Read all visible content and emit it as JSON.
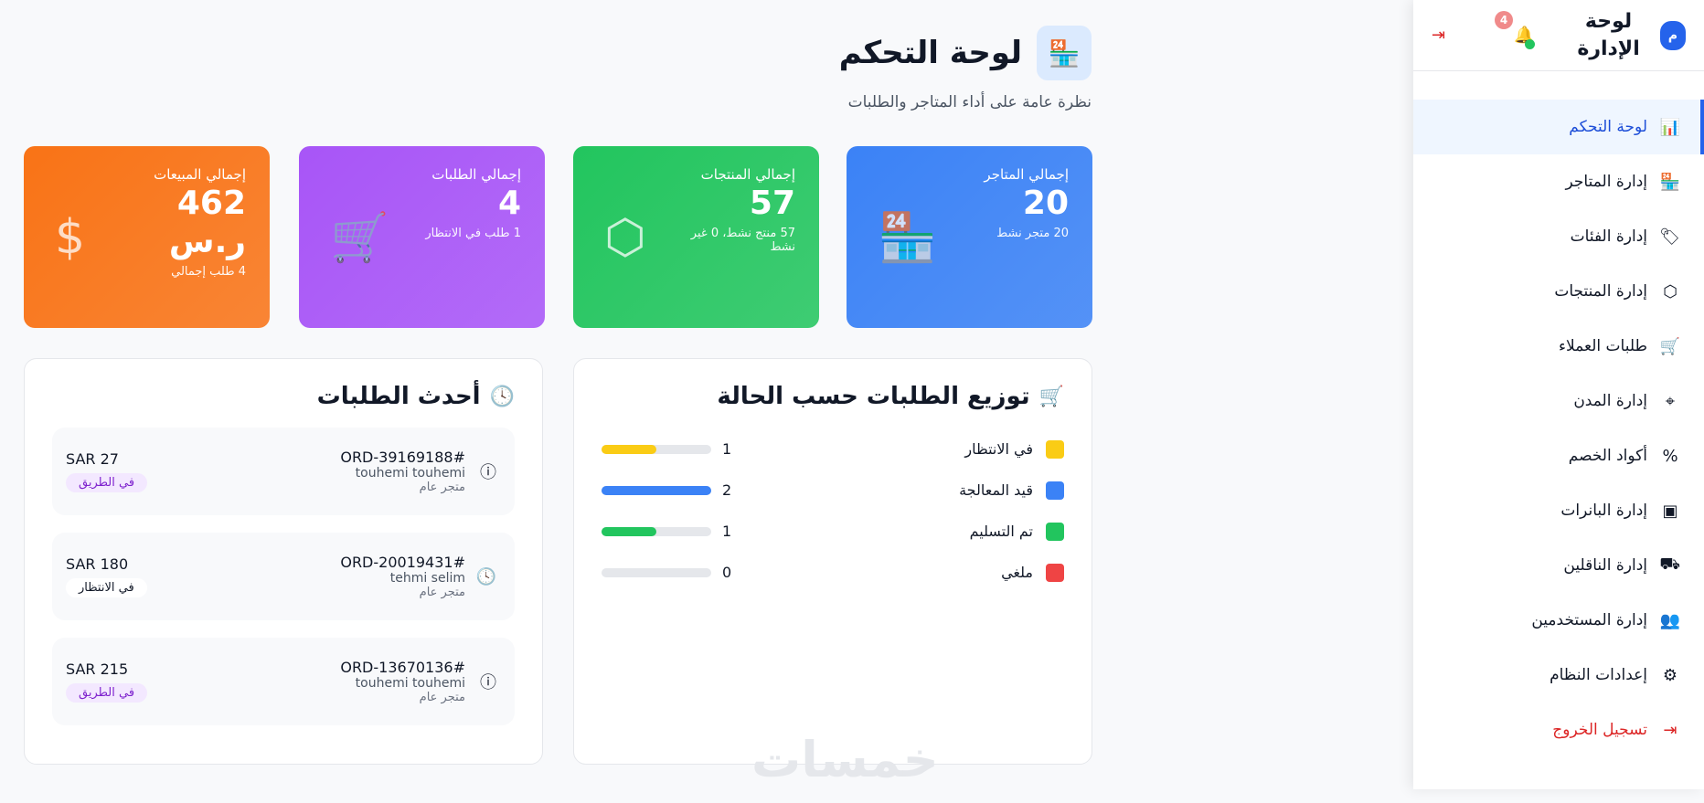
{
  "sidebar": {
    "avatar": "م",
    "brand": "لوحة الإدارة",
    "notifications": "4",
    "items": [
      {
        "label": "لوحة التحكم",
        "icon": "bar-chart-icon",
        "glyph": "📊"
      },
      {
        "label": "إدارة المتاجر",
        "icon": "store-icon",
        "glyph": "🏪"
      },
      {
        "label": "إدارة الفئات",
        "icon": "tag-icon",
        "glyph": "🏷"
      },
      {
        "label": "إدارة المنتجات",
        "icon": "box-icon",
        "glyph": "⬡"
      },
      {
        "label": "طلبات العملاء",
        "icon": "cart-icon",
        "glyph": "🛒"
      },
      {
        "label": "إدارة المدن",
        "icon": "map-pin-icon",
        "glyph": "⌖"
      },
      {
        "label": "أكواد الخصم",
        "icon": "percent-icon",
        "glyph": "%"
      },
      {
        "label": "إدارة البانرات",
        "icon": "image-icon",
        "glyph": "▣"
      },
      {
        "label": "إدارة الناقلين",
        "icon": "truck-icon",
        "glyph": "⛟"
      },
      {
        "label": "إدارة المستخدمين",
        "icon": "users-icon",
        "glyph": "👥"
      },
      {
        "label": "إعدادات النظام",
        "icon": "gear-icon",
        "glyph": "⚙"
      },
      {
        "label": "تسجيل الخروج",
        "icon": "logout-icon",
        "glyph": "⇥"
      }
    ]
  },
  "header": {
    "title": "لوحة التحكم",
    "subtitle": "نظرة عامة على أداء المتاجر والطلبات"
  },
  "cards": [
    {
      "label": "إجمالي المتاجر",
      "value": "20",
      "sub": "20 متجر نشط",
      "color": "#3b82f6",
      "icon": "store-icon"
    },
    {
      "label": "إجمالي المنتجات",
      "value": "57",
      "sub": "57 منتج نشط، 0 غير نشط",
      "color": "#22c55e",
      "icon": "box-icon"
    },
    {
      "label": "إجمالي الطلبات",
      "value": "4",
      "sub": "1 طلب في الانتظار",
      "color": "#a855f7",
      "icon": "cart-icon"
    },
    {
      "label": "إجمالي المبيعات",
      "value": "462 ر.س",
      "sub": "4 طلب إجمالي",
      "color": "#f97316",
      "icon": "dollar-icon"
    }
  ],
  "status_panel": {
    "title": "توزيع الطلبات حسب الحالة",
    "max": 2,
    "rows": [
      {
        "label": "في الانتظار",
        "count": 1,
        "color": "#facc15"
      },
      {
        "label": "قيد المعالجة",
        "count": 2,
        "color": "#3b82f6"
      },
      {
        "label": "تم التسليم",
        "count": 1,
        "color": "#22c55e"
      },
      {
        "label": "ملغي",
        "count": 0,
        "color": "#ef4444"
      }
    ]
  },
  "orders_panel": {
    "title": "أحدث الطلبات",
    "orders": [
      {
        "id": "ORD-39169188#",
        "customer": "touhemi touhemi",
        "store": "متجر عام",
        "amount": "SAR 27",
        "status": "في الطريق",
        "icon": "alert-circle-icon"
      },
      {
        "id": "ORD-20019431#",
        "customer": "tehmi selim",
        "store": "متجر عام",
        "amount": "SAR 180",
        "status": "في الانتظار",
        "icon": "clock-icon"
      },
      {
        "id": "ORD-13670136#",
        "customer": "touhemi touhemi",
        "store": "متجر عام",
        "amount": "SAR 215",
        "status": "في الطريق",
        "icon": "alert-circle-icon"
      }
    ]
  },
  "watermark": "خمسات"
}
